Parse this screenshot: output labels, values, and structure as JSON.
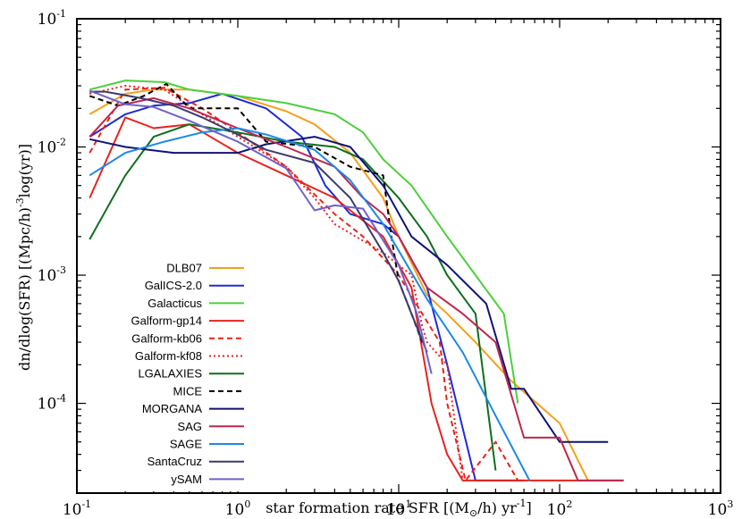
{
  "chart_data": {
    "type": "line",
    "x_scale": "log",
    "y_scale": "log",
    "xlim": [
      0.1,
      1000
    ],
    "ylim": [
      1.995e-05,
      0.1
    ],
    "grid": false,
    "legend_position": "bottom-left",
    "xlabel": "star formation rate SFR [(M",
    "xlabel_sub": "⊙",
    "xlabel_mid": "/h) yr",
    "xlabel_sup": "-1",
    "xlabel_end": "]",
    "ylabel": "dn/dlog(SFR) [(Mpc/h)",
    "ylabel_sup": "-3",
    "ylabel_end": "log(yr)]",
    "x_ticks": [
      {
        "value": 0.1,
        "base": "10",
        "exp": "-1"
      },
      {
        "value": 1,
        "base": "10",
        "exp": "0"
      },
      {
        "value": 10,
        "base": "10",
        "exp": "1"
      },
      {
        "value": 100,
        "base": "10",
        "exp": "2"
      },
      {
        "value": 1000,
        "base": "10",
        "exp": "3"
      }
    ],
    "y_ticks": [
      {
        "value": 0.0001,
        "base": "10",
        "exp": "-4"
      },
      {
        "value": 0.001,
        "base": "10",
        "exp": "-3"
      },
      {
        "value": 0.01,
        "base": "10",
        "exp": "-2"
      },
      {
        "value": 0.1,
        "base": "10",
        "exp": "-1"
      }
    ],
    "series": [
      {
        "name": "DLB07",
        "color": "#f5a01a",
        "dash": "solid",
        "points": [
          [
            0.12,
            0.018
          ],
          [
            0.2,
            0.026
          ],
          [
            0.3,
            0.028
          ],
          [
            0.5,
            0.028
          ],
          [
            1,
            0.025
          ],
          [
            2,
            0.019
          ],
          [
            3,
            0.015
          ],
          [
            5,
            0.009
          ],
          [
            8,
            0.004
          ],
          [
            10,
            0.002
          ],
          [
            15,
            0.0007
          ],
          [
            20,
            0.0005
          ],
          [
            30,
            0.0003
          ],
          [
            50,
            0.00015
          ],
          [
            100,
            7e-05
          ],
          [
            150,
            2.5e-05
          ]
        ]
      },
      {
        "name": "GalICS-2.0",
        "color": "#1e2ad8",
        "dash": "solid",
        "points": [
          [
            0.12,
            0.012
          ],
          [
            0.2,
            0.018
          ],
          [
            0.3,
            0.021
          ],
          [
            0.5,
            0.022
          ],
          [
            0.8,
            0.026
          ],
          [
            1.5,
            0.02
          ],
          [
            2.5,
            0.012
          ],
          [
            3.5,
            0.005
          ],
          [
            5,
            0.003
          ],
          [
            8,
            0.0025
          ],
          [
            10,
            0.002
          ],
          [
            15,
            0.0008
          ],
          [
            20,
            0.0002
          ],
          [
            30,
            2.5e-05
          ],
          [
            60,
            2.5e-05
          ]
        ]
      },
      {
        "name": "Galacticus",
        "color": "#4bd03c",
        "dash": "solid",
        "points": [
          [
            0.12,
            0.028
          ],
          [
            0.2,
            0.033
          ],
          [
            0.35,
            0.032
          ],
          [
            0.5,
            0.028
          ],
          [
            1,
            0.025
          ],
          [
            2,
            0.022
          ],
          [
            4,
            0.018
          ],
          [
            6,
            0.013
          ],
          [
            8,
            0.008
          ],
          [
            12,
            0.005
          ],
          [
            20,
            0.002
          ],
          [
            30,
            0.001
          ],
          [
            45,
            0.0005
          ],
          [
            55,
            0.0001
          ]
        ]
      },
      {
        "name": "Galform-gp14",
        "color": "#e8231c",
        "dash": "solid",
        "points": [
          [
            0.12,
            0.004
          ],
          [
            0.2,
            0.017
          ],
          [
            0.3,
            0.014
          ],
          [
            0.5,
            0.015
          ],
          [
            1,
            0.009
          ],
          [
            2,
            0.006
          ],
          [
            4,
            0.004
          ],
          [
            8,
            0.002
          ],
          [
            12,
            0.0008
          ],
          [
            16,
            0.0001
          ],
          [
            20,
            4e-05
          ],
          [
            25,
            2.5e-05
          ],
          [
            250,
            2.5e-05
          ]
        ]
      },
      {
        "name": "Galform-kb06",
        "color": "#e8231c",
        "dash": "dashed",
        "points": [
          [
            0.12,
            0.009
          ],
          [
            0.2,
            0.028
          ],
          [
            0.35,
            0.029
          ],
          [
            0.6,
            0.02
          ],
          [
            1,
            0.013
          ],
          [
            2,
            0.007
          ],
          [
            4,
            0.003
          ],
          [
            6,
            0.002
          ],
          [
            10,
            0.001
          ],
          [
            14,
            0.0005
          ],
          [
            18,
            0.0003
          ],
          [
            20,
            0.0001
          ],
          [
            26,
            2.5e-05
          ],
          [
            40,
            5e-05
          ],
          [
            55,
            2.5e-05
          ]
        ]
      },
      {
        "name": "Galform-kf08",
        "color": "#e8231c",
        "dash": "dotted",
        "points": [
          [
            0.12,
            0.026
          ],
          [
            0.2,
            0.03
          ],
          [
            0.35,
            0.028
          ],
          [
            0.6,
            0.018
          ],
          [
            1,
            0.012
          ],
          [
            2,
            0.007
          ],
          [
            3,
            0.004
          ],
          [
            4,
            0.0025
          ],
          [
            8,
            0.0015
          ],
          [
            12,
            0.001
          ],
          [
            14,
            0.0004
          ],
          [
            15,
            0.0003
          ],
          [
            20,
            0.0002
          ],
          [
            25,
            2.5e-05
          ]
        ]
      },
      {
        "name": "LGALAXIES",
        "color": "#0f6e1e",
        "dash": "solid",
        "points": [
          [
            0.12,
            0.0019
          ],
          [
            0.2,
            0.006
          ],
          [
            0.3,
            0.012
          ],
          [
            0.5,
            0.015
          ],
          [
            1,
            0.013
          ],
          [
            2,
            0.011
          ],
          [
            4,
            0.01
          ],
          [
            6,
            0.008
          ],
          [
            10,
            0.004
          ],
          [
            15,
            0.002
          ],
          [
            20,
            0.001
          ],
          [
            30,
            0.0005
          ],
          [
            40,
            3e-05
          ]
        ]
      },
      {
        "name": "MICE",
        "color": "#000000",
        "dash": "dashed",
        "points": [
          [
            0.12,
            0.025
          ],
          [
            0.18,
            0.021
          ],
          [
            0.26,
            0.025
          ],
          [
            0.36,
            0.031
          ],
          [
            0.5,
            0.02
          ],
          [
            1,
            0.02
          ],
          [
            1.5,
            0.011
          ],
          [
            3,
            0.01
          ],
          [
            5,
            0.007
          ],
          [
            8,
            0.006
          ],
          [
            9,
            0.002
          ],
          [
            10,
            0.0009
          ],
          [
            12,
            0.0005
          ],
          [
            14,
            0.0003
          ]
        ]
      },
      {
        "name": "MORGANA",
        "color": "#0e1378",
        "dash": "solid",
        "points": [
          [
            0.12,
            0.0115
          ],
          [
            0.2,
            0.01
          ],
          [
            0.4,
            0.009
          ],
          [
            0.8,
            0.009
          ],
          [
            1,
            0.009
          ],
          [
            1.5,
            0.0105
          ],
          [
            3,
            0.012
          ],
          [
            5,
            0.01
          ],
          [
            8,
            0.005
          ],
          [
            12,
            0.002
          ],
          [
            20,
            0.0012
          ],
          [
            35,
            0.0006
          ],
          [
            50,
            0.00013
          ],
          [
            60,
            0.00013
          ],
          [
            100,
            5e-05
          ],
          [
            200,
            5e-05
          ]
        ]
      },
      {
        "name": "SAG",
        "color": "#c0264c",
        "dash": "solid",
        "points": [
          [
            0.12,
            0.012
          ],
          [
            0.18,
            0.021
          ],
          [
            0.3,
            0.024
          ],
          [
            0.5,
            0.02
          ],
          [
            1,
            0.014
          ],
          [
            2,
            0.01
          ],
          [
            4,
            0.007
          ],
          [
            6,
            0.004
          ],
          [
            8,
            0.003
          ],
          [
            10,
            0.002
          ],
          [
            15,
            0.0008
          ],
          [
            25,
            0.0005
          ],
          [
            40,
            0.0003
          ],
          [
            60,
            5.4e-05
          ],
          [
            100,
            5.4e-05
          ],
          [
            130,
            2.5e-05
          ],
          [
            250,
            2.5e-05
          ]
        ]
      },
      {
        "name": "SAGE",
        "color": "#1c88e8",
        "dash": "solid",
        "points": [
          [
            0.12,
            0.006
          ],
          [
            0.2,
            0.009
          ],
          [
            0.35,
            0.011
          ],
          [
            0.6,
            0.013
          ],
          [
            1,
            0.014
          ],
          [
            1.5,
            0.0125
          ],
          [
            3,
            0.0095
          ],
          [
            5,
            0.0055
          ],
          [
            8,
            0.0025
          ],
          [
            15,
            0.00065
          ],
          [
            25,
            0.00025
          ],
          [
            40,
            8e-05
          ],
          [
            65,
            2.5e-05
          ]
        ]
      },
      {
        "name": "SantaCruz",
        "color": "#3c3a6e",
        "dash": "solid",
        "points": [
          [
            0.12,
            0.027
          ],
          [
            0.15,
            0.027
          ],
          [
            0.25,
            0.024
          ],
          [
            0.4,
            0.021
          ],
          [
            0.6,
            0.017
          ],
          [
            1,
            0.0125
          ],
          [
            1.5,
            0.0095
          ],
          [
            3,
            0.0075
          ],
          [
            5,
            0.004
          ],
          [
            8,
            0.0015
          ],
          [
            10,
            0.0009
          ],
          [
            12,
            0.0005
          ],
          [
            15,
            0.00025
          ]
        ]
      },
      {
        "name": "ySAM",
        "color": "#7060cc",
        "dash": "solid",
        "points": [
          [
            0.12,
            0.0275
          ],
          [
            0.2,
            0.0215
          ],
          [
            0.3,
            0.0205
          ],
          [
            0.5,
            0.016
          ],
          [
            1,
            0.011
          ],
          [
            2,
            0.0068
          ],
          [
            3,
            0.0032
          ],
          [
            4,
            0.0035
          ],
          [
            6,
            0.0033
          ],
          [
            10,
            0.0012
          ],
          [
            13,
            0.0005
          ],
          [
            16,
            0.00017
          ]
        ]
      }
    ]
  }
}
